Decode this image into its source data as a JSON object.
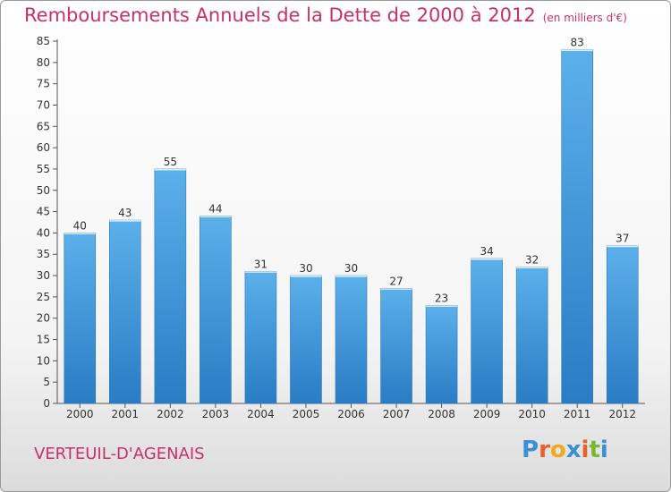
{
  "title": {
    "main": "Remboursements Annuels de la Dette de 2000 à 2012",
    "unit": "(en milliers d'€)"
  },
  "commune": "VERTEUIL-D'AGENAIS",
  "brand": {
    "letters": [
      "P",
      "r",
      "o",
      "x",
      "i",
      "t",
      "i"
    ],
    "colors": [
      "#3a8fd6",
      "#e8602a",
      "#f3a81c",
      "#3a8fd6",
      "#e8602a",
      "#7ab82e",
      "#3a8fd6"
    ]
  },
  "chart_data": {
    "type": "bar",
    "title": "Remboursements Annuels de la Dette de 2000 à 2012",
    "categories": [
      "2000",
      "2001",
      "2002",
      "2003",
      "2004",
      "2005",
      "2006",
      "2007",
      "2008",
      "2009",
      "2010",
      "2011",
      "2012"
    ],
    "values": [
      40,
      43,
      55,
      44,
      31,
      30,
      30,
      27,
      23,
      34,
      32,
      83,
      37
    ],
    "ylim": [
      0,
      85
    ],
    "yticks": [
      0,
      5,
      10,
      15,
      20,
      25,
      30,
      35,
      40,
      45,
      50,
      55,
      60,
      65,
      70,
      75,
      80,
      85
    ],
    "grid": false,
    "bar_color": "#4a9fe0"
  }
}
